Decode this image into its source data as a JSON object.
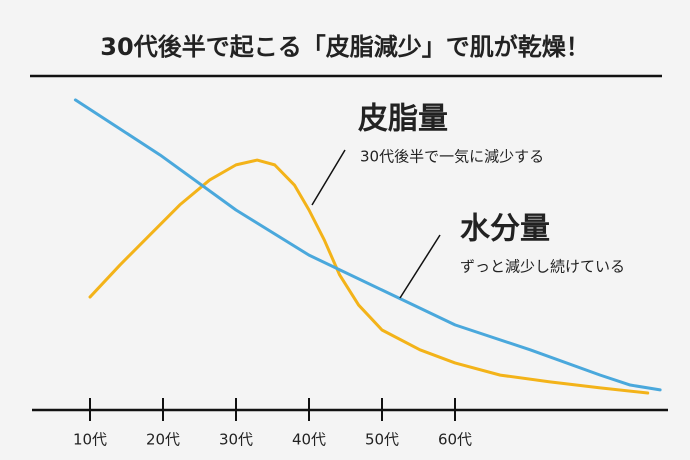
{
  "chart_data": {
    "type": "line",
    "title": "30代後半で起こる「皮脂減少」で肌が乾燥！",
    "xlim": [
      5,
      90
    ],
    "ylim": [
      0,
      100
    ],
    "xticks": [
      {
        "value": 10,
        "label": "10代"
      },
      {
        "value": 20,
        "label": "20代"
      },
      {
        "value": 30,
        "label": "30代"
      },
      {
        "value": 40,
        "label": "40代"
      },
      {
        "value": 50,
        "label": "50代"
      },
      {
        "value": 60,
        "label": "60代"
      }
    ],
    "series": [
      {
        "name": "皮脂量",
        "annotation": "30代後半で一気に減少する",
        "color": "#f3b319",
        "x": [
          10,
          14.1,
          18.2,
          22.3,
          26.4,
          30,
          32.9,
          35.3,
          38,
          40,
          42.1,
          44.2,
          46.8,
          50,
          55.2,
          60,
          66.2,
          73,
          79.9,
          86.4
        ],
        "values": [
          35.3,
          45.3,
          54.7,
          64.1,
          71.9,
          76.6,
          78.1,
          76.6,
          70.3,
          62.5,
          53.1,
          42.2,
          32.8,
          25,
          18.8,
          14.7,
          10.9,
          8.8,
          6.9,
          5.3
        ]
      },
      {
        "name": "水分量",
        "annotation": "ずっと減少し続けている",
        "color": "#4aa8dc",
        "x": [
          8,
          19.6,
          30,
          40,
          50,
          60,
          70.3,
          79.9,
          84,
          88.1
        ],
        "values": [
          96.9,
          79.7,
          62.5,
          48.4,
          37.5,
          26.6,
          18.8,
          10.9,
          7.8,
          6.3
        ]
      }
    ]
  }
}
